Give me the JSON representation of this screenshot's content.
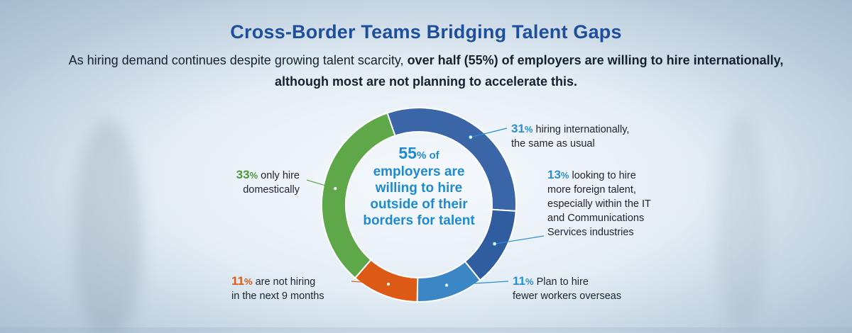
{
  "header": {
    "title": "Cross-Border Teams Bridging Talent Gaps",
    "subtitle_part1": "As hiring demand continues despite growing talent scarcity, ",
    "subtitle_bold1": "over half (55%) of employers are willing to hire internationally,",
    "subtitle_part2": " although most are not planning to accelerate this."
  },
  "center": {
    "number": "55",
    "unit": "% of",
    "text": "employers are willing to hire outside of their borders for talent"
  },
  "chart_data": {
    "type": "pie",
    "donut": true,
    "unit": "%",
    "slices": [
      {
        "value": 31,
        "pct_label": "31",
        "label": "hiring internationally, the same as usual",
        "color": "#3a66a8"
      },
      {
        "value": 13,
        "pct_label": "13",
        "label": "looking to hire more foreign talent, especially within the IT and Communications Services industries",
        "color": "#2f5da0"
      },
      {
        "value": 11,
        "pct_label": "11",
        "label": "Plan to hire fewer workers overseas",
        "color": "#3d86c6"
      },
      {
        "value": 11,
        "pct_label": "11",
        "label": "are not hiring in the next 9 months",
        "color": "#dd5a16"
      },
      {
        "value": 33,
        "pct_label": "33",
        "label": "only hire domestically",
        "color": "#5fa84a"
      }
    ]
  },
  "annotations": {
    "hiring_intl": {
      "pct": "31",
      "sym": "%",
      "line1": " hiring internationally,",
      "line2": "the same as usual",
      "color": "#2a8fd4"
    },
    "foreign_talent": {
      "pct": "13",
      "sym": "%",
      "line1": " looking to hire",
      "line2": "more foreign talent,",
      "line3": "especially within the IT",
      "line4": "and Communications",
      "line5": "Services industries",
      "color": "#2a8fd4"
    },
    "fewer_overseas": {
      "pct": "11",
      "sym": "%",
      "line1": " Plan to hire",
      "line2": "fewer workers overseas",
      "color": "#2a8fd4"
    },
    "not_hiring": {
      "pct": "11",
      "sym": "%",
      "line1": " are not hiring",
      "line2": "in the next 9 months",
      "color": "#dd5a16"
    },
    "domestic": {
      "pct": "33",
      "sym": "%",
      "line1": " only hire",
      "line2": "domestically",
      "color": "#4a9a3a"
    }
  }
}
